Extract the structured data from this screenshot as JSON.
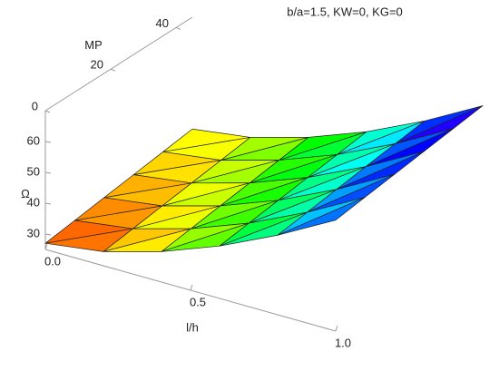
{
  "chart_data": {
    "type": "surface",
    "title": "b/a=1.5, KW=0, KG=0",
    "x_label": "l/h",
    "y_label": "MP",
    "z_label": "Ω",
    "x": [
      0,
      0.2,
      0.4,
      0.6,
      0.8,
      1.0
    ],
    "y": [
      0,
      9,
      18,
      27,
      36,
      45
    ],
    "z": [
      [
        27,
        29.6,
        34.9,
        42,
        50.8,
        61
      ],
      [
        28.35,
        30.95,
        36.25,
        43.35,
        52.15,
        62.35
      ],
      [
        29.7,
        32.3,
        37.6,
        44.7,
        53.5,
        63.7
      ],
      [
        31.05,
        33.65,
        38.95,
        46.05,
        54.85,
        65.05
      ],
      [
        32.4,
        35,
        40.3,
        47.4,
        56.2,
        66.4
      ],
      [
        33.75,
        36.35,
        41.65,
        48.75,
        57.55,
        67.75
      ]
    ],
    "xlim": [
      0,
      1
    ],
    "ylim": [
      0,
      45
    ],
    "zlim": [
      25,
      70
    ],
    "xticks": [
      {
        "value": 0,
        "label": "0.0"
      },
      {
        "value": 0.5,
        "label": "0.5"
      },
      {
        "value": 1,
        "label": "1.0"
      }
    ],
    "yticks": [
      0,
      20,
      40
    ],
    "zticks": [
      30,
      40,
      50,
      60
    ],
    "colormap": "rainbow",
    "mesh_color": "#222222"
  }
}
